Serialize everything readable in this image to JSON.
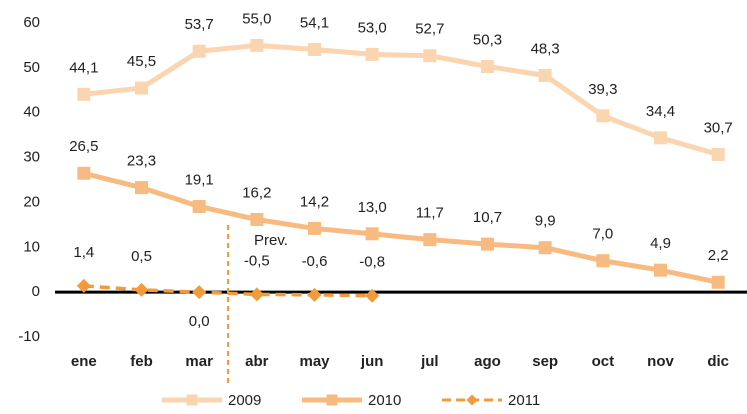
{
  "chart_data": {
    "type": "line",
    "categories": [
      "ene",
      "feb",
      "mar",
      "abr",
      "may",
      "jun",
      "jul",
      "ago",
      "sep",
      "oct",
      "nov",
      "dic"
    ],
    "series": [
      {
        "name": "2009",
        "color": "#fbd5b0",
        "marker": "square",
        "dash": false,
        "values": [
          44.1,
          45.5,
          53.7,
          55.0,
          54.1,
          53.0,
          52.7,
          50.3,
          48.3,
          39.3,
          34.4,
          30.7
        ],
        "value_labels": [
          "44,1",
          "45,5",
          "53,7",
          "55,0",
          "54,1",
          "53,0",
          "52,7",
          "50,3",
          "48,3",
          "39,3",
          "34,4",
          "30,7"
        ]
      },
      {
        "name": "2010",
        "color": "#f7bb82",
        "marker": "square",
        "dash": false,
        "values": [
          26.5,
          23.3,
          19.1,
          16.2,
          14.2,
          13.0,
          11.7,
          10.7,
          9.9,
          7.0,
          4.9,
          2.2
        ],
        "value_labels": [
          "26,5",
          "23,3",
          "19,1",
          "16,2",
          "14,2",
          "13,0",
          "11,7",
          "10,7",
          "9,9",
          "7,0",
          "4,9",
          "2,2"
        ]
      },
      {
        "name": "2011",
        "color": "#f39a3a",
        "marker": "diamond",
        "dash": true,
        "values": [
          1.4,
          0.5,
          0.0,
          -0.5,
          -0.6,
          -0.8,
          null,
          null,
          null,
          null,
          null,
          null
        ],
        "value_labels": [
          "1,4",
          "0,5",
          "0,0",
          "-0,5",
          "-0,6",
          "-0,8",
          null,
          null,
          null,
          null,
          null,
          null
        ]
      }
    ],
    "ylim": [
      -10,
      60
    ],
    "yticks": [
      -10,
      0,
      10,
      20,
      30,
      40,
      50,
      60
    ],
    "grid": false,
    "annotation": "Prev.",
    "legend": "bottom"
  }
}
